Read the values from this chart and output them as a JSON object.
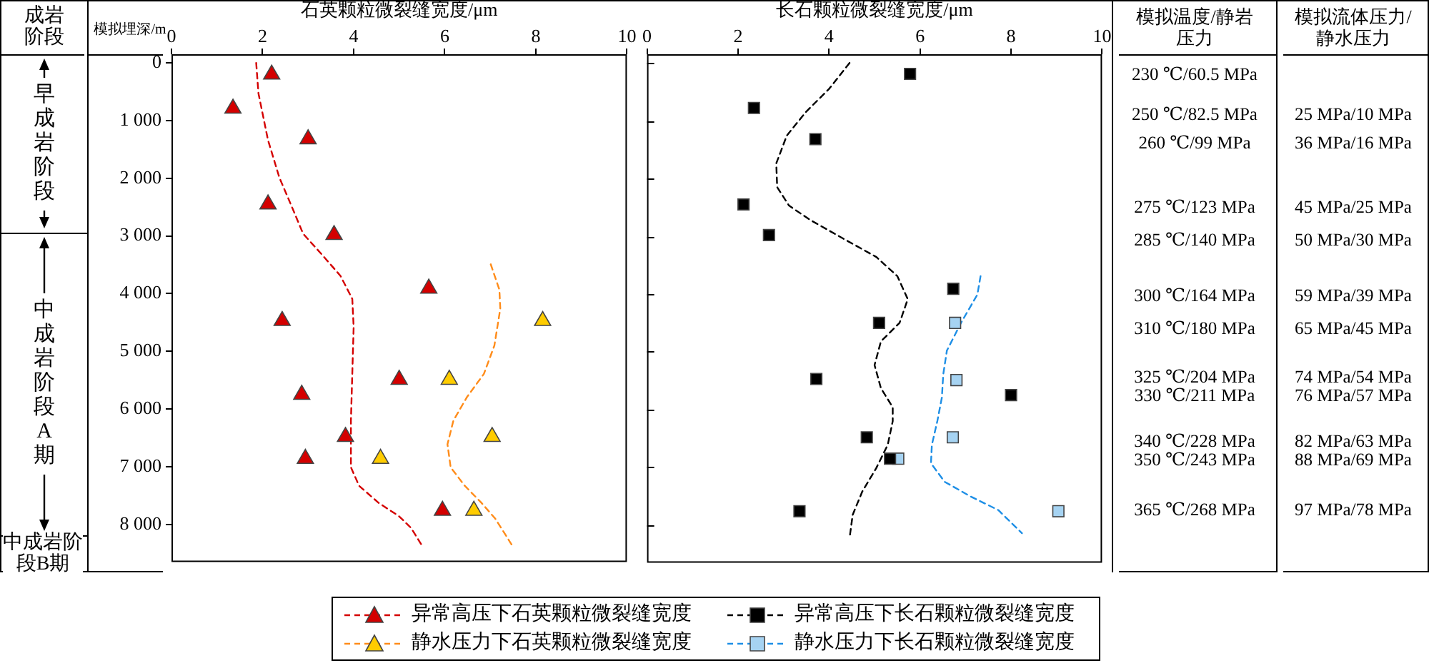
{
  "chart_data": [
    {
      "type": "other",
      "title": "成岩阶段",
      "annotations": [
        "早成岩阶段",
        "中成岩阶段A期",
        "中成岩阶段B期"
      ]
    },
    {
      "type": "scatter",
      "xlabel": "石英颗粒微裂缝宽度/μm",
      "ylabel": "模拟埋深/m",
      "xlim": [
        0,
        10
      ],
      "xticks": [
        0,
        2,
        4,
        6,
        8,
        10
      ],
      "ylim": [
        8650,
        -150
      ],
      "yticks": [
        0,
        {
          "value": 1000,
          "label": "1 000"
        },
        {
          "value": 2000,
          "label": "2 000"
        },
        {
          "value": 3000,
          "label": "3 000"
        },
        {
          "value": 4000,
          "label": "4 000"
        },
        {
          "value": 5000,
          "label": "5 000"
        },
        {
          "value": 6000,
          "label": "6 000"
        },
        {
          "value": 7000,
          "label": "7 000"
        },
        {
          "value": 8000,
          "label": "8 000"
        }
      ],
      "legend": "bottom",
      "series": [
        {
          "type": "scatter",
          "name": "异常高压下石英颗粒微裂缝宽度",
          "color": "#d40000",
          "marker": "triangle",
          "x": [
            2.2,
            1.35,
            3.0,
            2.12,
            3.57,
            5.65,
            2.43,
            5.0,
            2.86,
            3.82,
            2.94,
            5.95
          ],
          "values": [
            200,
            790,
            1320,
            2450,
            2980,
            3910,
            4470,
            5490,
            5750,
            6480,
            6860,
            7760
          ]
        },
        {
          "type": "line",
          "color": "#d40000",
          "line_style": "dashed",
          "marker": "none",
          "x": [
            1.86,
            1.91,
            2.12,
            2.37,
            2.63,
            2.89,
            3.3,
            3.71,
            3.97,
            4.0,
            3.97,
            3.94,
            3.94,
            4.12,
            4.54,
            5.0,
            5.26,
            5.52
          ],
          "values": [
            0,
            530,
            1340,
            1990,
            2470,
            2960,
            3320,
            3690,
            4090,
            4580,
            5390,
            6200,
            7010,
            7330,
            7620,
            7860,
            8060,
            8390
          ]
        },
        {
          "type": "scatter",
          "name": "静水压力下石英颗粒微裂缝宽度",
          "color": "#ffcc00",
          "marker": "triangle",
          "x": [
            8.15,
            6.1,
            7.04,
            4.59,
            6.64
          ],
          "values": [
            4470,
            5490,
            6480,
            6860,
            7760
          ]
        },
        {
          "type": "line",
          "color": "#ff8c1a",
          "line_style": "dashed",
          "marker": "none",
          "x": [
            7.01,
            7.2,
            7.22,
            7.09,
            6.86,
            6.49,
            6.19,
            6.06,
            6.13,
            6.44,
            6.8,
            7.11,
            7.47
          ],
          "values": [
            3490,
            3930,
            4260,
            4900,
            5390,
            5790,
            6200,
            6610,
            7010,
            7330,
            7620,
            7900,
            8350
          ]
        }
      ]
    },
    {
      "type": "scatter",
      "xlabel": "长石颗粒微裂缝宽度/μm",
      "xlim": [
        0,
        10
      ],
      "xticks": [
        0,
        2,
        4,
        6,
        8,
        10
      ],
      "ylim": [
        8650,
        -150
      ],
      "yticks": [
        0,
        1000,
        2000,
        3000,
        4000,
        5000,
        6000,
        7000,
        8000
      ],
      "tick_labels": "x",
      "legend": "bottom",
      "series": [
        {
          "type": "scatter",
          "name": "异常高压下长石颗粒微裂缝宽度",
          "color": "#000000",
          "marker": "square",
          "x": [
            5.78,
            2.35,
            3.7,
            2.12,
            2.68,
            6.73,
            5.1,
            3.72,
            8.0,
            4.83,
            5.34,
            3.35
          ],
          "values": [
            190,
            780,
            1320,
            2450,
            2980,
            3910,
            4500,
            5470,
            5750,
            6480,
            6850,
            7760
          ]
        },
        {
          "type": "line",
          "color": "#000000",
          "line_style": "dashed",
          "marker": "none",
          "x": [
            4.45,
            4.0,
            3.49,
            3.07,
            2.84,
            2.86,
            3.12,
            3.59,
            4.31,
            5.04,
            5.5,
            5.73,
            5.55,
            5.14,
            5.0,
            5.14,
            5.4,
            5.4,
            5.29,
            5.04,
            4.73,
            4.52,
            4.45
          ],
          "values": [
            0,
            450,
            850,
            1260,
            1740,
            2150,
            2470,
            2720,
            3040,
            3360,
            3690,
            4090,
            4500,
            4820,
            5230,
            5630,
            5960,
            6200,
            6610,
            7010,
            7420,
            7820,
            8230
          ]
        },
        {
          "type": "scatter",
          "name": "静水压力下长石颗粒微裂缝宽度",
          "color": "#a6d3f2",
          "marker": "square",
          "x": [
            6.77,
            6.8,
            6.72,
            5.52,
            9.04
          ],
          "values": [
            4500,
            5490,
            6480,
            6850,
            7760
          ]
        },
        {
          "type": "line",
          "color": "#1e8fe6",
          "line_style": "dashed",
          "marker": "none",
          "x": [
            7.33,
            7.26,
            6.9,
            6.59,
            6.51,
            6.48,
            6.38,
            6.26,
            6.24,
            6.54,
            7.1,
            7.72,
            8.24
          ],
          "values": [
            3690,
            4010,
            4500,
            4980,
            5390,
            5790,
            6200,
            6610,
            6930,
            7250,
            7500,
            7740,
            8140
          ]
        }
      ]
    },
    {
      "type": "other",
      "title": "模拟温度/静岩压力",
      "annotations": [
        "230 ℃/60.5 MPa",
        "250 ℃/82.5 MPa",
        "260 ℃/99 MPa",
        "275 ℃/123 MPa",
        "285 ℃/140 MPa",
        "300 ℃/164 MPa",
        "310 ℃/180 MPa",
        "325 ℃/204 MPa",
        "330 ℃/211 MPa",
        "340 ℃/228 MPa",
        "350 ℃/243 MPa",
        "365 ℃/268 MPa"
      ]
    },
    {
      "type": "other",
      "title": "模拟流体压力/静水压力",
      "annotations": [
        "25 MPa/10 MPa",
        "36 MPa/16 MPa",
        "45 MPa/25 MPa",
        "50 MPa/30 MPa",
        "59 MPa/39 MPa",
        "65 MPa/45 MPa",
        "74 MPa/54 MPa",
        "76 MPa/57 MPa",
        "82 MPa/63 MPa",
        "88 MPa/69 MPa",
        "97 MPa/78 MPa"
      ]
    }
  ]
}
